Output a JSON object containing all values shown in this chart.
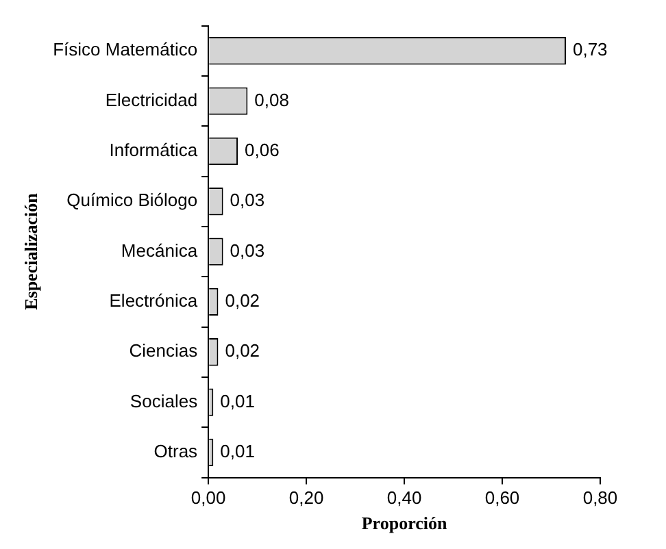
{
  "chart_data": {
    "type": "bar",
    "orientation": "horizontal",
    "xlabel": "Proporción",
    "ylabel": "Especialización",
    "categories": [
      "Físico Matemático",
      "Electricidad",
      "Informática",
      "Químico Biólogo",
      "Mecánica",
      "Electrónica",
      "Ciencias",
      "Sociales",
      "Otras"
    ],
    "values": [
      0.73,
      0.08,
      0.06,
      0.03,
      0.03,
      0.02,
      0.02,
      0.01,
      0.01
    ],
    "value_labels": [
      "0,73",
      "0,08",
      "0,06",
      "0,03",
      "0,03",
      "0,02",
      "0,02",
      "0,01",
      "0,01"
    ],
    "color": "#d4d4d4",
    "xlim": [
      0,
      0.8
    ],
    "xticks": [
      {
        "value": 0,
        "label": "0,00"
      },
      {
        "value": 0.2,
        "label": "0,20"
      },
      {
        "value": 0.4,
        "label": "0,40"
      },
      {
        "value": 0.6,
        "label": "0,60"
      },
      {
        "value": 0.8,
        "label": "0,80"
      }
    ],
    "legend": false
  }
}
